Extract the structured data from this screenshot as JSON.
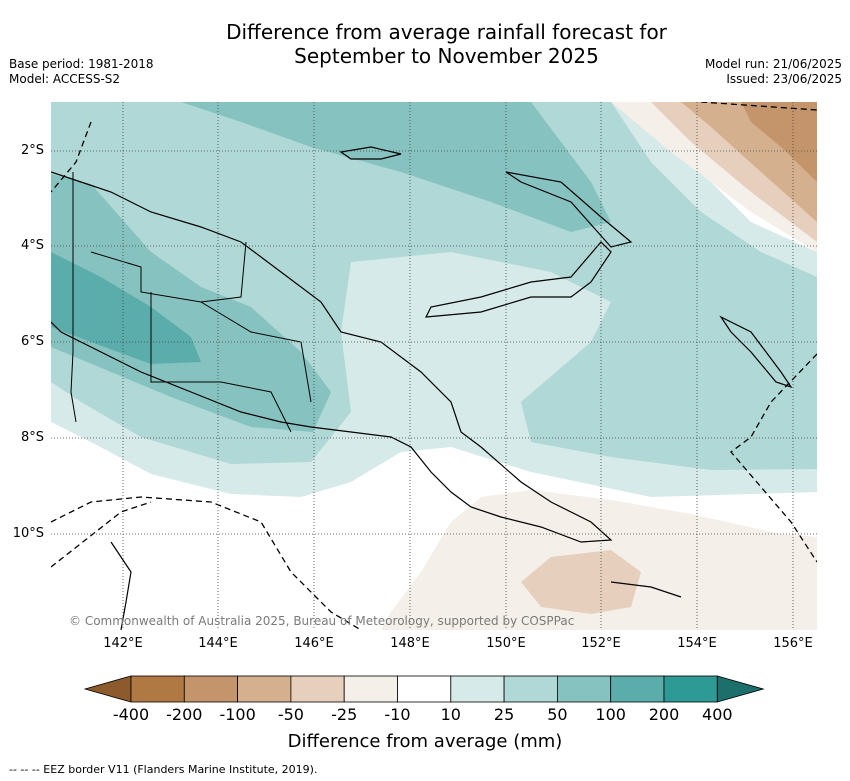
{
  "title_line1": "Difference from average rainfall forecast for",
  "title_line2": "September to November 2025",
  "base_period": "Base period: 1981-2018",
  "model": "Model: ACCESS-S2",
  "model_run": "Model run: 21/06/2025",
  "issued": "Issued: 23/06/2025",
  "copyright": "© Commonwealth of Australia 2025, Bureau of Meteorology, supported by COSPPac",
  "lat_labels": [
    "2°S",
    "4°S",
    "6°S",
    "8°S",
    "10°S"
  ],
  "lon_labels": [
    "142°E",
    "144°E",
    "146°E",
    "148°E",
    "150°E",
    "152°E",
    "154°E",
    "156°E"
  ],
  "colorbar": {
    "title": "Difference from average (mm)",
    "labels": [
      "-400",
      "-200",
      "-100",
      "-50",
      "-25",
      "-10",
      "10",
      "25",
      "50",
      "100",
      "200",
      "400"
    ],
    "colors": [
      "#8c5a2c",
      "#b07843",
      "#c4956b",
      "#d5b08f",
      "#e6d0bd",
      "#f4efe8",
      "#ffffff",
      "#d6eae9",
      "#afd8d6",
      "#86c3c0",
      "#5aadab",
      "#2e9a96",
      "#1d6f6c"
    ]
  },
  "footnote": "-- -- -- EEZ border V11 (Flanders Marine Institute, 2019)."
}
